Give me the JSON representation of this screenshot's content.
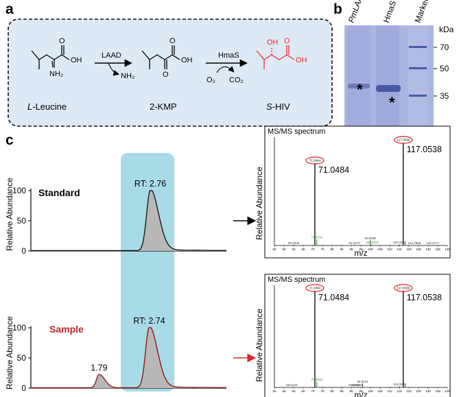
{
  "panels": {
    "a": "a",
    "b": "b",
    "c": "c"
  },
  "scheme": {
    "enzyme1": "LAAD",
    "byproduct1": "NH₃",
    "enzyme2": "HmaS",
    "o2": "O₂",
    "co2": "CO₂",
    "compounds": [
      {
        "label_prefix": "L",
        "label_rest": "-Leucine",
        "color": "#000000"
      },
      {
        "label_prefix": "",
        "label_rest": "2-KMP",
        "color": "#000000"
      },
      {
        "label_prefix": "S",
        "label_rest": "-HIV",
        "color": "#ee2b2b"
      }
    ],
    "atom_oh": "OH",
    "atom_o": "O",
    "atom_nh2": "NH₂",
    "box_color": "#dde9f5",
    "product_color": "#ee2b2b"
  },
  "gel": {
    "lane_labels": [
      "PmLAAD",
      "HmaS",
      "Marker"
    ],
    "unit": "kDa",
    "marker_kda": [
      70,
      50,
      35
    ],
    "star": "*",
    "gel_color": "#a9b5e0"
  },
  "chromatograms": [
    {
      "name": "Standard",
      "name_color": "#000000",
      "line_color": "#1a1a1a",
      "ylabel": "Relative Abundance",
      "yticks": [
        "100",
        "50",
        "0"
      ],
      "peaks": [
        {
          "rt": 2.76,
          "label": "RT: 2.76",
          "height": 100
        }
      ],
      "arrow_color": "#000000"
    },
    {
      "name": "Sample",
      "name_color": "#b5272e",
      "line_color": "#8b1a1a",
      "ylabel": "Relative Abundance",
      "yticks": [
        "100",
        "50",
        "0"
      ],
      "peaks": [
        {
          "rt": 1.79,
          "label": "1.79",
          "height": 22
        },
        {
          "rt": 2.74,
          "label": "RT: 2.74",
          "height": 100
        }
      ],
      "arrow_color": "#d9282f"
    }
  ],
  "highlight_color": "#a9dbe6",
  "chart_data": [
    {
      "type": "bar",
      "title": "MS/MS spectrum",
      "xlabel": "m/z",
      "ylabel": "Relative Abundance",
      "xlim": [
        50,
        140
      ],
      "ylim": [
        0,
        100
      ],
      "xticks": [
        "50",
        "55",
        "60",
        "65",
        "70",
        "75",
        "80",
        "85",
        "90",
        "95",
        "100",
        "105",
        "110",
        "115",
        "120",
        "125",
        "130",
        "135",
        "140"
      ],
      "labels": [
        {
          "mz": 71.0484,
          "text": "71.0484",
          "circled": "71.0484",
          "big": true
        },
        {
          "mz": 117.0538,
          "text": "117.0538",
          "circled": "117.0538",
          "big": true
        }
      ],
      "peaks": [
        {
          "mz": 60.053,
          "intensity": 0.5,
          "label": "60.0530",
          "color": "#333333"
        },
        {
          "mz": 71.0484,
          "intensity": 80,
          "label": "",
          "color": "#111111"
        },
        {
          "mz": 72.0519,
          "intensity": 6,
          "label": "72.0519",
          "color": "#2e8b2e"
        },
        {
          "mz": 91.6379,
          "intensity": 0.5,
          "label": "91.6379",
          "color": "#333333"
        },
        {
          "mz": 99.9238,
          "intensity": 5,
          "label": "99.9238",
          "color": "#333333"
        },
        {
          "mz": 100.9237,
          "intensity": 1,
          "label": "100.9237",
          "color": "#2e8b2e"
        },
        {
          "mz": 115.0382,
          "intensity": 1,
          "label": "115.0382",
          "color": "#333333"
        },
        {
          "mz": 117.0538,
          "intensity": 100,
          "label": "",
          "color": "#111111"
        },
        {
          "mz": 118.0571,
          "intensity": 4,
          "label": "",
          "color": "#2e8b2e"
        },
        {
          "mz": 122.7858,
          "intensity": 0.5,
          "label": "122.7858",
          "color": "#333333"
        },
        {
          "mz": 132.4177,
          "intensity": 0.5,
          "label": "132.4177",
          "color": "#333333"
        }
      ]
    },
    {
      "type": "bar",
      "title": "MS/MS spectrum",
      "xlabel": "m/z",
      "ylabel": "Relative Abundance",
      "xlim": [
        50,
        140
      ],
      "ylim": [
        0,
        100
      ],
      "xticks": [
        "50",
        "55",
        "60",
        "65",
        "70",
        "75",
        "80",
        "85",
        "90",
        "95",
        "100",
        "105",
        "110",
        "115",
        "120",
        "125",
        "130",
        "135",
        "140"
      ],
      "labels": [
        {
          "mz": 71.0484,
          "text": "71.0484",
          "circled": "71.0484",
          "big": true
        },
        {
          "mz": 117.0538,
          "text": "117.0538",
          "circled": "117.0538",
          "big": true
        }
      ],
      "peaks": [
        {
          "mz": 59.012,
          "intensity": 0.5,
          "label": "59.0120",
          "color": "#333333"
        },
        {
          "mz": 71.0484,
          "intensity": 100,
          "label": "",
          "color": "#111111"
        },
        {
          "mz": 72.0518,
          "intensity": 6,
          "label": "72.0518",
          "color": "#2e8b2e"
        },
        {
          "mz": 91.5403,
          "intensity": 0.5,
          "label": "91.5403",
          "color": "#333333"
        },
        {
          "mz": 93.0632,
          "intensity": 0.5,
          "label": "93.0632",
          "color": "#333333"
        },
        {
          "mz": 95.9241,
          "intensity": 4,
          "label": "95.9241",
          "color": "#333333"
        },
        {
          "mz": 115.038,
          "intensity": 1,
          "label": "115.0380",
          "color": "#333333"
        },
        {
          "mz": 117.0538,
          "intensity": 100,
          "label": "",
          "color": "#111111"
        },
        {
          "mz": 118.0571,
          "intensity": 4,
          "label": "",
          "color": "#2e8b2e"
        }
      ]
    }
  ]
}
